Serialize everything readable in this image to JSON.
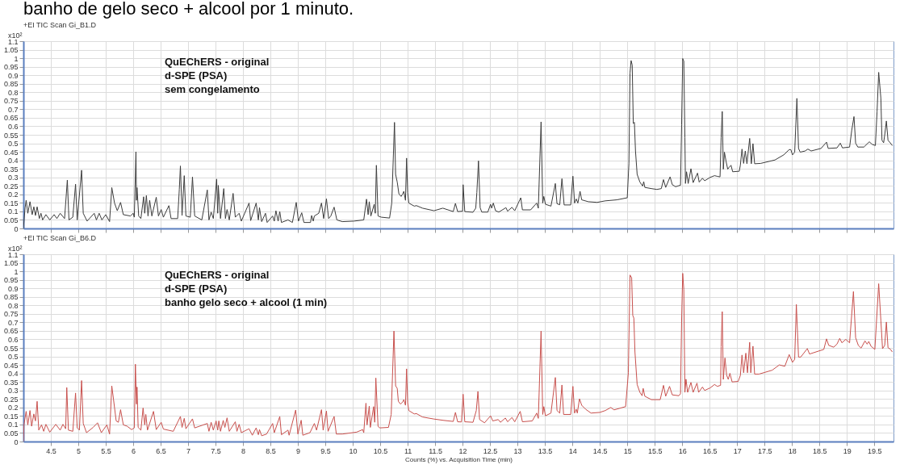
{
  "chart_data": [
    {
      "type": "line",
      "title": "banho de gelo seco + alcool por 1 minuto.",
      "subtitle": "+EI TIC Scan Gi_B1.D",
      "ylabel": "x10²",
      "annotations": [
        "QuEChERS - original",
        "d-SPE (PSA)",
        "sem congelamento"
      ],
      "xlim": [
        4.0,
        19.85
      ],
      "ylim": [
        0,
        1.1
      ],
      "xticks": [
        4.5,
        5,
        5.5,
        6,
        6.5,
        7,
        7.5,
        8,
        8.5,
        9,
        9.5,
        10,
        10.5,
        11,
        11.5,
        12,
        12.5,
        13,
        13.5,
        14,
        14.5,
        15,
        15.5,
        16,
        16.5,
        17,
        17.5,
        18,
        18.5,
        19,
        19.5
      ],
      "yticks": [
        0,
        0.05,
        0.1,
        0.15,
        0.2,
        0.25,
        0.3,
        0.35,
        0.4,
        0.45,
        0.5,
        0.55,
        0.6,
        0.65,
        0.7,
        0.75,
        0.8,
        0.85,
        0.9,
        0.95,
        1,
        1.05,
        1.1
      ],
      "grid": true,
      "tick_labels": "y",
      "line_style": "solid",
      "series": [
        {
          "color": "#3c3c3c",
          "x": [
            4.0,
            4.03,
            4.05,
            4.08,
            4.12,
            4.16,
            4.19,
            4.22,
            4.25,
            4.29,
            4.32,
            4.35,
            4.41,
            4.48,
            4.56,
            4.61,
            4.67,
            4.75,
            4.8,
            4.83,
            4.9,
            4.95,
            4.98,
            5.06,
            5.09,
            5.16,
            5.29,
            5.33,
            5.38,
            5.43,
            5.5,
            5.57,
            5.61,
            5.66,
            5.71,
            5.77,
            5.82,
            5.95,
            6.0,
            6.02,
            6.05,
            6.06,
            6.07,
            6.1,
            6.14,
            6.19,
            6.21,
            6.24,
            6.27,
            6.3,
            6.34,
            6.42,
            6.46,
            6.51,
            6.55,
            6.65,
            6.69,
            6.81,
            6.84,
            6.86,
            6.89,
            6.93,
            6.96,
            7.04,
            7.08,
            7.12,
            7.25,
            7.35,
            7.38,
            7.42,
            7.46,
            7.52,
            7.54,
            7.55,
            7.59,
            7.65,
            7.68,
            7.71,
            7.75,
            7.82,
            7.86,
            7.93,
            7.97,
            8.11,
            8.14,
            8.24,
            8.28,
            8.3,
            8.34,
            8.41,
            8.44,
            8.54,
            8.57,
            8.6,
            8.64,
            8.67,
            8.7,
            8.82,
            8.9,
            8.97,
            9.01,
            9.07,
            9.11,
            9.23,
            9.25,
            9.28,
            9.3,
            9.38,
            9.43,
            9.47,
            9.52,
            9.56,
            9.6,
            9.66,
            9.71,
            9.81,
            10.02,
            10.2,
            10.25,
            10.28,
            10.3,
            10.33,
            10.39,
            10.41,
            10.43,
            10.46,
            10.52,
            10.67,
            10.71,
            10.76,
            10.78,
            10.81,
            10.84,
            10.88,
            10.91,
            10.93,
            10.96,
            10.98,
            11.0,
            11.02,
            11.12,
            11.16,
            11.27,
            11.48,
            11.64,
            11.83,
            11.87,
            11.91,
            12.0,
            12.01,
            12.04,
            12.19,
            12.24,
            12.26,
            12.29,
            12.32,
            12.35,
            12.46,
            12.51,
            12.53,
            12.56,
            12.6,
            12.66,
            12.79,
            12.82,
            12.9,
            12.95,
            13.06,
            13.09,
            13.24,
            13.35,
            13.38,
            13.43,
            13.46,
            13.48,
            13.51,
            13.61,
            13.69,
            13.72,
            13.77,
            13.81,
            13.85,
            13.97,
            14.01,
            14.04,
            14.07,
            14.1,
            14.14,
            14.17,
            14.29,
            14.45,
            14.6,
            14.81,
            15.0,
            15.03,
            15.05,
            15.07,
            15.09,
            15.11,
            15.13,
            15.15,
            15.18,
            15.23,
            15.28,
            15.3,
            15.32,
            15.44,
            15.54,
            15.62,
            15.66,
            15.7,
            15.78,
            15.82,
            15.88,
            15.97,
            15.99,
            16.01,
            16.03,
            16.05,
            16.06,
            16.08,
            16.11,
            16.16,
            16.2,
            16.28,
            16.31,
            16.37,
            16.41,
            16.51,
            16.59,
            16.64,
            16.69,
            16.71,
            16.73,
            16.75,
            16.77,
            16.8,
            16.83,
            16.85,
            16.89,
            16.92,
            17.04,
            17.06,
            17.09,
            17.12,
            17.15,
            17.18,
            17.23,
            17.26,
            17.29,
            17.32,
            17.43,
            17.69,
            17.85,
            17.95,
            17.98,
            18.01,
            18.05,
            18.09,
            18.12,
            18.15,
            18.24,
            18.29,
            18.35,
            18.53,
            18.63,
            18.66,
            18.82,
            18.88,
            18.92,
            19.05,
            19.09,
            19.13,
            19.16,
            19.2,
            19.31,
            19.41,
            19.46,
            19.52,
            19.55,
            19.58,
            19.62,
            19.64,
            19.67,
            19.69,
            19.72,
            19.75,
            19.79,
            19.83
          ],
          "values": [
            0,
            0.119,
            0.165,
            0.089,
            0.157,
            0.081,
            0.127,
            0.076,
            0.127,
            0.058,
            0.089,
            0.05,
            0.081,
            0.05,
            0.081,
            0.058,
            0.089,
            0.058,
            0.284,
            0.05,
            0.066,
            0.26,
            0.05,
            0.342,
            0.089,
            0.043,
            0.089,
            0.05,
            0.089,
            0.05,
            0.081,
            0.04,
            0.24,
            0.149,
            0.104,
            0.153,
            0.081,
            0.073,
            0.089,
            0.066,
            0.45,
            0.165,
            0.24,
            0.073,
            0.058,
            0.186,
            0.089,
            0.193,
            0.073,
            0.165,
            0.073,
            0.183,
            0.073,
            0.111,
            0.066,
            0.134,
            0.058,
            0.058,
            0.229,
            0.367,
            0.076,
            0.31,
            0.073,
            0.066,
            0.302,
            0.073,
            0.05,
            0.226,
            0.05,
            0.096,
            0.058,
            0.29,
            0.089,
            0.253,
            0.058,
            0.234,
            0.058,
            0.111,
            0.05,
            0.206,
            0.066,
            0.089,
            0.043,
            0.149,
            0.046,
            0.149,
            0.05,
            0.122,
            0.04,
            0.089,
            0.035,
            0.073,
            0.043,
            0.104,
            0.043,
            0.099,
            0.035,
            0.05,
            0.035,
            0.153,
            0.043,
            0.092,
            0.035,
            0.035,
            0.076,
            0.043,
            0.073,
            0.089,
            0.149,
            0.058,
            0.174,
            0.058,
            0.073,
            0.125,
            0.05,
            0.04,
            0.043,
            0.05,
            0.172,
            0.081,
            0.157,
            0.073,
            0.142,
            0.089,
            0.371,
            0.073,
            0.066,
            0.061,
            0.149,
            0.623,
            0.318,
            0.272,
            0.203,
            0.188,
            0.203,
            0.218,
            0.165,
            0.413,
            0.212,
            0.149,
            0.131,
            0.134,
            0.119,
            0.104,
            0.119,
            0.099,
            0.147,
            0.099,
            0.101,
            0.257,
            0.099,
            0.095,
            0.119,
            0.211,
            0.397,
            0.122,
            0.096,
            0.096,
            0.142,
            0.119,
            0.149,
            0.104,
            0.096,
            0.122,
            0.101,
            0.124,
            0.104,
            0.18,
            0.109,
            0.109,
            0.149,
            0.119,
            0.626,
            0.149,
            0.188,
            0.142,
            0.131,
            0.264,
            0.145,
            0.139,
            0.292,
            0.138,
            0.138,
            0.307,
            0.149,
            0.173,
            0.149,
            0.218,
            0.168,
            0.157,
            0.153,
            0.162,
            0.168,
            0.18,
            0.38,
            0.913,
            0.986,
            0.96,
            0.616,
            0.623,
            0.455,
            0.318,
            0.272,
            0.249,
            0.275,
            0.241,
            0.234,
            0.229,
            0.234,
            0.287,
            0.241,
            0.303,
            0.257,
            0.245,
            0.254,
            0.608,
            0.998,
            0.982,
            0.532,
            0.264,
            0.333,
            0.264,
            0.351,
            0.269,
            0.325,
            0.272,
            0.295,
            0.28,
            0.3,
            0.31,
            0.306,
            0.303,
            0.532,
            0.687,
            0.348,
            0.448,
            0.394,
            0.348,
            0.357,
            0.371,
            0.333,
            0.336,
            0.371,
            0.466,
            0.382,
            0.455,
            0.38,
            0.529,
            0.38,
            0.498,
            0.38,
            0.382,
            0.402,
            0.432,
            0.463,
            0.463,
            0.432,
            0.448,
            0.764,
            0.47,
            0.448,
            0.455,
            0.466,
            0.455,
            0.47,
            0.507,
            0.47,
            0.473,
            0.501,
            0.473,
            0.478,
            0.578,
            0.657,
            0.501,
            0.478,
            0.478,
            0.509,
            0.494,
            0.487,
            0.684,
            0.917,
            0.764,
            0.518,
            0.503,
            0.55,
            0.631,
            0.518,
            0.503,
            0.486
          ]
        }
      ]
    },
    {
      "type": "line",
      "subtitle": "+EI TIC Scan Gi_B6.D",
      "xlabel": "Counts (%) vs. Acquisition Time (min)",
      "ylabel": "x10²",
      "annotations": [
        "QuEChERS - original",
        "d-SPE (PSA)",
        "banho gelo seco + alcool (1 min)"
      ],
      "xlim": [
        4.0,
        19.85
      ],
      "ylim": [
        0,
        1.1
      ],
      "xticks": [
        4.5,
        5,
        5.5,
        6,
        6.5,
        7,
        7.5,
        8,
        8.5,
        9,
        9.5,
        10,
        10.5,
        11,
        11.5,
        12,
        12.5,
        13,
        13.5,
        14,
        14.5,
        15,
        15.5,
        16,
        16.5,
        17,
        17.5,
        18,
        18.5,
        19,
        19.5
      ],
      "yticks": [
        0,
        0.05,
        0.1,
        0.15,
        0.2,
        0.25,
        0.3,
        0.35,
        0.4,
        0.45,
        0.5,
        0.55,
        0.6,
        0.65,
        0.7,
        0.75,
        0.8,
        0.85,
        0.9,
        0.95,
        1,
        1.05,
        1.1
      ],
      "grid": true,
      "line_style": "solid",
      "series": [
        {
          "color": "#c8504d",
          "x": [
            4.0,
            4.01,
            4.05,
            4.08,
            4.12,
            4.15,
            4.19,
            4.22,
            4.25,
            4.28,
            4.33,
            4.37,
            4.41,
            4.48,
            4.59,
            4.67,
            4.72,
            4.77,
            4.79,
            4.82,
            4.9,
            4.95,
            4.98,
            5.02,
            5.06,
            5.09,
            5.15,
            5.27,
            5.35,
            5.42,
            5.52,
            5.57,
            5.61,
            5.64,
            5.69,
            5.73,
            5.77,
            5.82,
            5.89,
            5.97,
            6.02,
            6.04,
            6.06,
            6.07,
            6.09,
            6.14,
            6.18,
            6.21,
            6.23,
            6.26,
            6.37,
            6.42,
            6.51,
            6.55,
            6.73,
            6.86,
            6.89,
            6.93,
            6.96,
            7.08,
            7.12,
            7.35,
            7.38,
            7.42,
            7.46,
            7.51,
            7.54,
            7.56,
            7.59,
            7.64,
            7.67,
            7.71,
            7.75,
            7.86,
            7.89,
            7.93,
            7.97,
            8.11,
            8.17,
            8.24,
            8.28,
            8.3,
            8.34,
            8.43,
            8.54,
            8.57,
            8.67,
            8.7,
            8.82,
            8.84,
            8.96,
            9.0,
            9.06,
            9.09,
            9.22,
            9.3,
            9.34,
            9.43,
            9.46,
            9.52,
            9.55,
            9.66,
            9.7,
            9.81,
            10.07,
            10.18,
            10.2,
            10.24,
            10.26,
            10.3,
            10.32,
            10.38,
            10.4,
            10.42,
            10.46,
            10.49,
            10.65,
            10.7,
            10.75,
            10.78,
            10.81,
            10.83,
            10.87,
            10.91,
            10.93,
            10.96,
            10.98,
            11.0,
            11.02,
            11.12,
            11.16,
            11.27,
            11.48,
            11.66,
            11.83,
            11.87,
            11.91,
            11.98,
            12.01,
            12.04,
            12.19,
            12.25,
            12.28,
            12.31,
            12.4,
            12.51,
            12.55,
            12.65,
            12.69,
            12.78,
            12.82,
            12.9,
            12.95,
            13.05,
            13.09,
            13.27,
            13.35,
            13.38,
            13.43,
            13.46,
            13.48,
            13.51,
            13.61,
            13.69,
            13.72,
            13.77,
            13.81,
            13.84,
            13.97,
            14.01,
            14.04,
            14.07,
            14.09,
            14.13,
            14.17,
            14.24,
            14.34,
            14.5,
            14.6,
            14.7,
            14.76,
            14.97,
            15.02,
            15.05,
            15.08,
            15.1,
            15.12,
            15.14,
            15.18,
            15.23,
            15.27,
            15.29,
            15.32,
            15.44,
            15.6,
            15.66,
            15.7,
            15.77,
            15.82,
            15.94,
            15.97,
            15.99,
            16.01,
            16.03,
            16.05,
            16.07,
            16.1,
            16.16,
            16.2,
            16.27,
            16.3,
            16.37,
            16.41,
            16.51,
            16.59,
            16.64,
            16.7,
            16.71,
            16.73,
            16.75,
            16.78,
            16.81,
            16.84,
            16.87,
            16.91,
            17.02,
            17.06,
            17.09,
            17.12,
            17.16,
            17.19,
            17.23,
            17.25,
            17.29,
            17.32,
            17.4,
            17.64,
            17.77,
            17.87,
            17.95,
            18.01,
            18.05,
            18.08,
            18.12,
            18.16,
            18.28,
            18.32,
            18.58,
            18.63,
            18.67,
            18.76,
            18.82,
            18.87,
            18.91,
            18.98,
            19.05,
            19.12,
            19.16,
            19.21,
            19.26,
            19.33,
            19.37,
            19.4,
            19.44,
            19.51,
            19.58,
            19.62,
            19.65,
            19.69,
            19.72,
            19.75,
            19.79,
            19.83
          ],
          "values": [
            0,
            0.098,
            0.177,
            0.098,
            0.182,
            0.09,
            0.162,
            0.121,
            0.236,
            0.067,
            0.098,
            0.06,
            0.101,
            0.055,
            0.101,
            0.067,
            0.101,
            0.075,
            0.317,
            0.067,
            0.06,
            0.285,
            0.08,
            0.067,
            0.358,
            0.106,
            0.052,
            0.083,
            0.11,
            0.052,
            0.098,
            0.044,
            0.327,
            0.251,
            0.121,
            0.113,
            0.187,
            0.098,
            0.09,
            0.07,
            0.08,
            0.454,
            0.22,
            0.32,
            0.083,
            0.067,
            0.197,
            0.098,
            0.159,
            0.067,
            0.177,
            0.07,
            0.113,
            0.073,
            0.06,
            0.147,
            0.083,
            0.136,
            0.075,
            0.133,
            0.08,
            0.106,
            0.06,
            0.113,
            0.067,
            0.121,
            0.067,
            0.121,
            0.06,
            0.124,
            0.083,
            0.139,
            0.06,
            0.116,
            0.06,
            0.101,
            0.052,
            0.075,
            0.037,
            0.08,
            0.04,
            0.07,
            0.034,
            0.044,
            0.106,
            0.052,
            0.147,
            0.04,
            0.067,
            0.037,
            0.185,
            0.044,
            0.125,
            0.037,
            0.052,
            0.106,
            0.067,
            0.187,
            0.067,
            0.179,
            0.06,
            0.147,
            0.044,
            0.044,
            0.055,
            0.07,
            0.052,
            0.225,
            0.098,
            0.208,
            0.083,
            0.205,
            0.113,
            0.373,
            0.09,
            0.08,
            0.083,
            0.159,
            0.649,
            0.327,
            0.312,
            0.236,
            0.22,
            0.233,
            0.246,
            0.213,
            0.427,
            0.228,
            0.182,
            0.162,
            0.164,
            0.144,
            0.132,
            0.124,
            0.118,
            0.171,
            0.116,
            0.115,
            0.278,
            0.116,
            0.113,
            0.182,
            0.294,
            0.129,
            0.11,
            0.151,
            0.121,
            0.129,
            0.113,
            0.138,
            0.116,
            0.141,
            0.116,
            0.177,
            0.116,
            0.121,
            0.167,
            0.136,
            0.649,
            0.159,
            0.205,
            0.151,
            0.167,
            0.376,
            0.182,
            0.167,
            0.332,
            0.159,
            0.159,
            0.324,
            0.167,
            0.19,
            0.167,
            0.251,
            0.213,
            0.19,
            0.167,
            0.171,
            0.182,
            0.2,
            0.186,
            0.205,
            0.404,
            0.978,
            0.962,
            0.741,
            0.725,
            0.526,
            0.335,
            0.289,
            0.269,
            0.312,
            0.266,
            0.246,
            0.246,
            0.33,
            0.266,
            0.324,
            0.274,
            0.269,
            0.281,
            0.711,
            0.988,
            0.893,
            0.289,
            0.366,
            0.289,
            0.347,
            0.289,
            0.343,
            0.289,
            0.32,
            0.3,
            0.315,
            0.335,
            0.324,
            0.33,
            0.557,
            0.763,
            0.365,
            0.491,
            0.39,
            0.365,
            0.401,
            0.35,
            0.353,
            0.388,
            0.508,
            0.404,
            0.519,
            0.404,
            0.583,
            0.404,
            0.56,
            0.396,
            0.396,
            0.419,
            0.45,
            0.442,
            0.511,
            0.465,
            0.483,
            0.805,
            0.496,
            0.496,
            0.546,
            0.514,
            0.541,
            0.603,
            0.565,
            0.554,
            0.572,
            0.606,
            0.58,
            0.6,
            0.58,
            0.881,
            0.61,
            0.564,
            0.549,
            0.591,
            0.572,
            0.588,
            0.56,
            0.541,
            0.927,
            0.71,
            0.545,
            0.565,
            0.702,
            0.551,
            0.543,
            0.526
          ]
        }
      ]
    }
  ]
}
